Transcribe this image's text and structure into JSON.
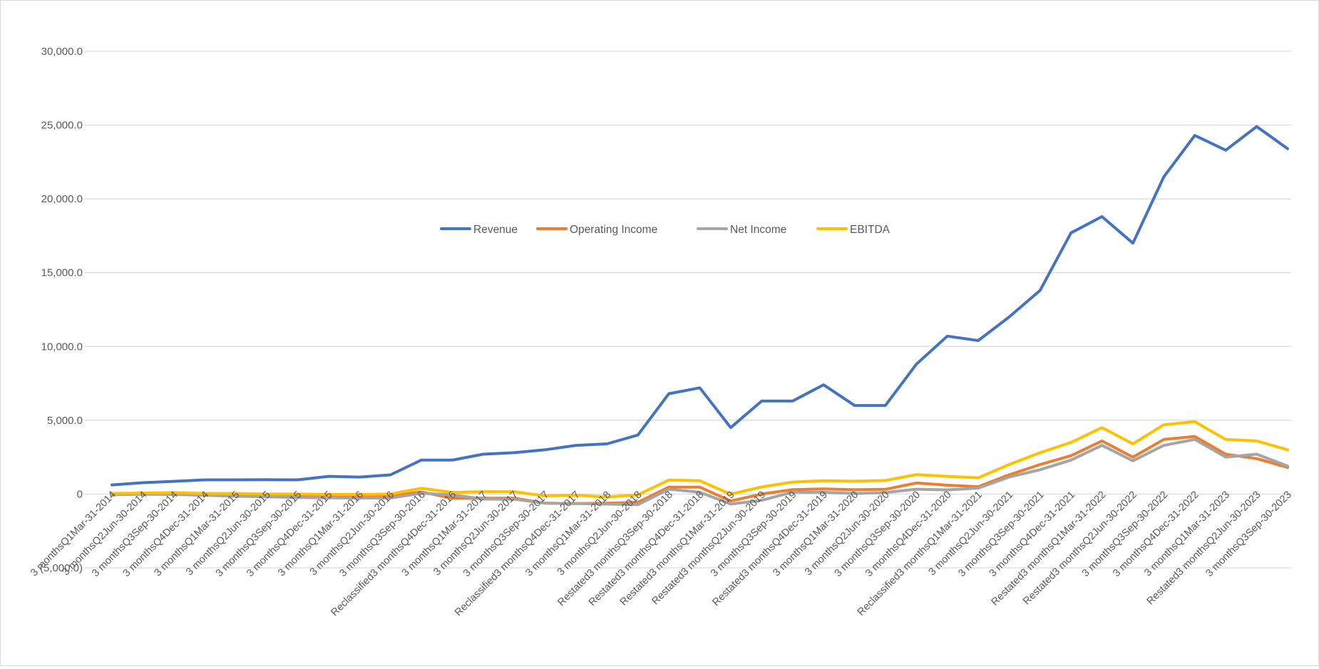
{
  "chart_data": {
    "type": "line",
    "title": "",
    "xlabel": "",
    "ylabel": "",
    "ylim": [
      -5000,
      30000
    ],
    "y_tick_values": [
      30000,
      25000,
      20000,
      15000,
      10000,
      5000,
      0,
      -5000
    ],
    "y_tick_labels": [
      "30,000.0",
      "25,000.0",
      "20,000.0",
      "15,000.0",
      "10,000.0",
      "5,000.0",
      "0",
      "(5,000.0)"
    ],
    "grid": true,
    "legend_position": "center",
    "categories": [
      "3 monthsQ1Mar-31-2014",
      "3 monthsQ2Jun-30-2014",
      "3 monthsQ3Sep-30-2014",
      "3 monthsQ4Dec-31-2014",
      "3 monthsQ1Mar-31-2015",
      "3 monthsQ2Jun-30-2015",
      "3 monthsQ3Sep-30-2015",
      "3 monthsQ4Dec-31-2015",
      "3 monthsQ1Mar-31-2016",
      "3 monthsQ2Jun-30-2016",
      "3 monthsQ3Sep-30-2016",
      "Reclassified3 monthsQ4Dec-31-2016",
      "3 monthsQ1Mar-31-2017",
      "3 monthsQ2Jun-30-2017",
      "3 monthsQ3Sep-30-2017",
      "Reclassified3 monthsQ4Dec-31-2017",
      "3 monthsQ1Mar-31-2018",
      "3 monthsQ2Jun-30-2018",
      "Restated3 monthsQ3Sep-30-2018",
      "Restated3 monthsQ4Dec-31-2018",
      "Restated3 monthsQ1Mar-31-2019",
      "Restated3 monthsQ2Jun-30-2019",
      "3 monthsQ3Sep-30-2019",
      "Restated3 monthsQ4Dec-31-2019",
      "3 monthsQ1Mar-31-2020",
      "3 monthsQ2Jun-30-2020",
      "3 monthsQ3Sep-30-2020",
      "3 monthsQ4Dec-31-2020",
      "Reclassified3 monthsQ1Mar-31-2021",
      "3 monthsQ2Jun-30-2021",
      "3 monthsQ3Sep-30-2021",
      "3 monthsQ4Dec-31-2021",
      "Restated3 monthsQ1Mar-31-2022",
      "Restated3 monthsQ2Jun-30-2022",
      "3 monthsQ3Sep-30-2022",
      "3 monthsQ4Dec-31-2022",
      "3 monthsQ1Mar-31-2023",
      "Restated3 monthsQ2Jun-30-2023",
      "3 monthsQ3Sep-30-2023"
    ],
    "series": [
      {
        "name": "Revenue",
        "color": "#4472C4",
        "values": [
          620,
          770,
          860,
          960,
          960,
          970,
          960,
          1200,
          1150,
          1300,
          2300,
          2300,
          2700,
          2800,
          3000,
          3300,
          3400,
          4000,
          6800,
          7200,
          4500,
          6300,
          6300,
          7400,
          6000,
          6000,
          8800,
          10700,
          10400,
          12000,
          13800,
          17700,
          18800,
          17000,
          21500,
          24300,
          23300,
          24900,
          23400
        ]
      },
      {
        "name": "Operating Income",
        "color": "#ED7D31",
        "values": [
          -30,
          20,
          30,
          -30,
          -60,
          -100,
          -130,
          -170,
          -190,
          -140,
          140,
          -280,
          -280,
          -280,
          -620,
          -640,
          -620,
          -560,
          470,
          470,
          -470,
          0,
          300,
          350,
          290,
          320,
          750,
          600,
          500,
          1300,
          2000,
          2600,
          3600,
          2500,
          3700,
          3900,
          2700,
          2400,
          1800
        ]
      },
      {
        "name": "Net Income",
        "color": "#A5A5A5",
        "values": [
          -40,
          -20,
          -30,
          -80,
          -150,
          -190,
          -230,
          -260,
          -270,
          -270,
          50,
          -50,
          -340,
          -350,
          -620,
          -640,
          -680,
          -720,
          330,
          120,
          -680,
          -430,
          130,
          120,
          30,
          100,
          330,
          280,
          400,
          1150,
          1650,
          2300,
          3300,
          2250,
          3300,
          3700,
          2500,
          2700,
          1900
        ]
      },
      {
        "name": "EBITDA",
        "color": "#FFC000",
        "values": [
          40,
          70,
          100,
          40,
          40,
          0,
          0,
          -30,
          -30,
          0,
          390,
          110,
          160,
          160,
          -130,
          -80,
          -200,
          -50,
          950,
          900,
          -10,
          480,
          810,
          900,
          870,
          920,
          1320,
          1200,
          1100,
          2000,
          2800,
          3500,
          4500,
          3400,
          4700,
          4900,
          3700,
          3600,
          3000
        ]
      }
    ]
  }
}
